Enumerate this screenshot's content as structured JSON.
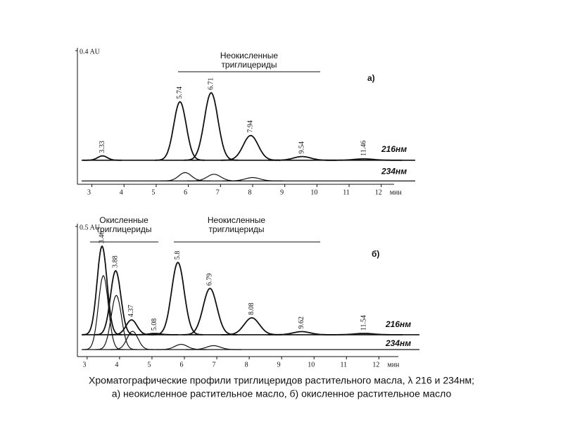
{
  "chart_data": [
    {
      "type": "line",
      "panel": "а)",
      "annotations": [
        [
          "Неокисленные",
          "триглицериды"
        ]
      ],
      "xlabel": "мин",
      "xlim": [
        2.55,
        12.4
      ],
      "xticks": [
        3,
        4,
        5,
        6,
        7,
        8,
        9,
        10,
        11,
        12
      ],
      "ylim": [
        0,
        0.4
      ],
      "yticks": [
        {
          "value": 0.4,
          "label": "0.4 AU"
        }
      ],
      "series": [
        {
          "name": "216нм",
          "color": "#111111",
          "baseline": 0.072,
          "x": [
            3.33,
            5.74,
            6.71,
            7.94,
            9.54,
            11.46
          ],
          "values": [
            0.013,
            0.175,
            0.202,
            0.074,
            0.011,
            0.004
          ]
        },
        {
          "name": "234нм",
          "color": "#111111",
          "baseline": 0.01,
          "x": [
            5.9,
            6.8,
            8.0
          ],
          "values": [
            0.025,
            0.02,
            0.01
          ]
        }
      ]
    },
    {
      "type": "line",
      "panel": "б)",
      "annotations": [
        [
          "Окисленные",
          "триглицериды"
        ],
        [
          "Неокисленные",
          "триглицериды"
        ]
      ],
      "xlabel": "мин",
      "xlim": [
        2.7,
        12.6
      ],
      "xticks": [
        3,
        4,
        5,
        6,
        7,
        8,
        9,
        10,
        11,
        12
      ],
      "ylim": [
        0,
        0.5
      ],
      "yticks": [
        {
          "value": 0.5,
          "label": "0.5 AU"
        }
      ],
      "series": [
        {
          "name": "216нм",
          "color": "#111111",
          "baseline": 0.084,
          "x": [
            3.46,
            3.88,
            4.37,
            5.08,
            5.8,
            6.79,
            8.08,
            9.62,
            11.54
          ],
          "values": [
            0.34,
            0.246,
            0.057,
            0.005,
            0.278,
            0.178,
            0.065,
            0.012,
            0.005
          ]
        },
        {
          "name": "234нм",
          "color": "#111111",
          "baseline": 0.027,
          "x": [
            3.5,
            3.9,
            4.4,
            5.9,
            6.9
          ],
          "values": [
            0.284,
            0.208,
            0.07,
            0.02,
            0.015
          ]
        }
      ]
    }
  ],
  "caption": [
    "Хроматографические профили триглицеридов растительного масла, λ 216 и 234нм;",
    "а) неокисленное растительное масло, б) окисленное растительное масло"
  ]
}
